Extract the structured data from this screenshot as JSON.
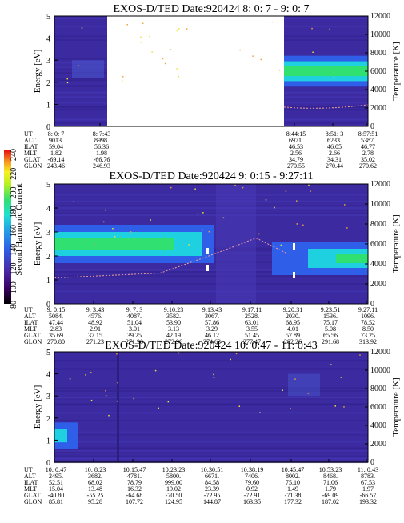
{
  "colorbar": {
    "label": "Second Harmonic Current",
    "ticks": [
      "240",
      "220",
      "200",
      "180",
      "160",
      "140",
      "120",
      "100",
      "80"
    ]
  },
  "chart_data": [
    {
      "type": "heatmap",
      "title": "EXOS-D/TED   Date:920424   8: 0: 7 - 9: 0: 7",
      "ylabel": "Energy [eV]",
      "y2label": "Temperature [K]",
      "ylim": [
        0,
        5
      ],
      "y2lim": [
        0,
        12000
      ],
      "yticks": [
        "0",
        "1",
        "2",
        "3",
        "4",
        "5"
      ],
      "y2ticks": [
        "0",
        "2000",
        "4000",
        "6000",
        "8000",
        "10000",
        "12000"
      ],
      "data_gap": {
        "from": "8: 7:43",
        "to": "8:44:15"
      },
      "ion_band_peak_ev": 2.5,
      "temperature_trace_k": 2100,
      "ephemeris": {
        "labels": [
          "UT",
          "ALT",
          "ILAT",
          "MLT",
          "GLAT",
          "GLON"
        ],
        "columns": [
          {
            "UT": "8: 0: 7",
            "ALT": "9013.",
            "ILAT": "59.04",
            "MLT": "1.82",
            "GLAT": "-69.14",
            "GLON": "243.46"
          },
          {
            "UT": "8: 7:43",
            "ALT": "8998.",
            "ILAT": "56.36",
            "MLT": "1.98",
            "GLAT": "-66.76",
            "GLON": "246.93"
          },
          {
            "UT": "8:44:15",
            "ALT": "6971.",
            "ILAT": "46.53",
            "MLT": "2.56",
            "GLAT": "34.79",
            "GLON": "270.55"
          },
          {
            "UT": "8:51: 3",
            "ALT": "6233.",
            "ILAT": "46.05",
            "MLT": "2.66",
            "GLAT": "34.31",
            "GLON": "270.44"
          },
          {
            "UT": "8:57:51",
            "ALT": "5387.",
            "ILAT": "46.77",
            "MLT": "2.78",
            "GLAT": "35.02",
            "GLON": "270.62"
          }
        ]
      }
    },
    {
      "type": "heatmap",
      "title": "EXOS-D/TED   Date:920424   9: 0:15 - 9:27:11",
      "ylabel": "Energy [eV]",
      "y2label": "Temperature [K]",
      "ylim": [
        0,
        5
      ],
      "y2lim": [
        0,
        12000
      ],
      "yticks": [
        "0",
        "1",
        "2",
        "3",
        "4",
        "5"
      ],
      "y2ticks": [
        "0",
        "2000",
        "4000",
        "6000",
        "8000",
        "10000",
        "12000"
      ],
      "ion_band_peak_ev": 2.5,
      "temperature_trace_k": 2600,
      "ephemeris": {
        "labels": [
          "UT",
          "ALT",
          "ILAT",
          "MLT",
          "GLAT",
          "GLON"
        ],
        "columns": [
          {
            "UT": "9: 0:15",
            "ALT": "5084.",
            "ILAT": "47.44",
            "MLT": "2.83",
            "GLAT": "35.69",
            "GLON": "270.80"
          },
          {
            "UT": "9: 3:43",
            "ALT": "4576.",
            "ILAT": "48.92",
            "MLT": "2.91",
            "GLAT": "37.15",
            "GLON": "271.23"
          },
          {
            "UT": "9: 7: 3",
            "ALT": "4087.",
            "ILAT": "51.04",
            "MLT": "3.01",
            "GLAT": "39.25",
            "GLON": "271.90"
          },
          {
            "UT": "9:10:23",
            "ALT": "3582.",
            "ILAT": "53.90",
            "MLT": "3.13",
            "GLAT": "42.19",
            "GLON": "272.96"
          },
          {
            "UT": "9:13:43",
            "ALT": "3067.",
            "ILAT": "57.86",
            "MLT": "3.29",
            "GLAT": "46.12",
            "GLON": "274.63"
          },
          {
            "UT": "9:17:11",
            "ALT": "2528.",
            "ILAT": "63.01",
            "MLT": "3.55",
            "GLAT": "51.45",
            "GLON": "277.47"
          },
          {
            "UT": "9:20:31",
            "ALT": "2030.",
            "ILAT": "68.95",
            "MLT": "4.01",
            "GLAT": "57.89",
            "GLON": "282.26"
          },
          {
            "UT": "9:23:51",
            "ALT": "1536.",
            "ILAT": "75.17",
            "MLT": "5.08",
            "GLAT": "65.56",
            "GLON": "291.68"
          },
          {
            "UT": "9:27:11",
            "ALT": "1096.",
            "ILAT": "78.52",
            "MLT": "8.50",
            "GLAT": "73.25",
            "GLON": "313.92"
          }
        ]
      }
    },
    {
      "type": "heatmap",
      "title": "EXOS-D/TED   Date:920424   10: 0:47 - 11: 0:43",
      "ylabel": "Energy [eV]",
      "y2label": "Temperature [K]",
      "ylim": [
        0,
        5
      ],
      "y2lim": [
        0,
        12000
      ],
      "yticks": [
        "0",
        "1",
        "2",
        "3",
        "4",
        "5"
      ],
      "y2ticks": [
        "0",
        "2000",
        "4000",
        "6000",
        "8000",
        "10000",
        "12000"
      ],
      "ion_band_peak_ev": 1.2,
      "ephemeris": {
        "labels": [
          "UT",
          "ALT",
          "ILAT",
          "MLT",
          "GLAT",
          "GLON"
        ],
        "columns": [
          {
            "UT": "10: 0:47",
            "ALT": "2495.",
            "ILAT": "52.51",
            "MLT": "15.04",
            "GLAT": "-40.80",
            "GLON": "85.81"
          },
          {
            "UT": "10: 8:23",
            "ALT": "3682.",
            "ILAT": "68.02",
            "MLT": "13.48",
            "GLAT": "-55.25",
            "GLON": "95.28"
          },
          {
            "UT": "10:15:47",
            "ALT": "4781.",
            "ILAT": "78.79",
            "MLT": "16.32",
            "GLAT": "-64.68",
            "GLON": "107.72"
          },
          {
            "UT": "10:23:23",
            "ALT": "5800.",
            "ILAT": "999.00",
            "MLT": "19.02",
            "GLAT": "-70.50",
            "GLON": "124.95"
          },
          {
            "UT": "10:30:51",
            "ALT": "6671.",
            "ILAT": "84.58",
            "MLT": "23.39",
            "GLAT": "-72.95",
            "GLON": "144.87"
          },
          {
            "UT": "10:38:19",
            "ALT": "7406.",
            "ILAT": "79.60",
            "MLT": "0.92",
            "GLAT": "-72.91",
            "GLON": "163.35"
          },
          {
            "UT": "10:45:47",
            "ALT": "8002.",
            "ILAT": "75.10",
            "MLT": "1.49",
            "GLAT": "-71.38",
            "GLON": "177.32"
          },
          {
            "UT": "10:53:23",
            "ALT": "8468.",
            "ILAT": "71.06",
            "MLT": "1.79",
            "GLAT": "-69.09",
            "GLON": "187.02"
          },
          {
            "UT": "11: 0:43",
            "ALT": "8783.",
            "ILAT": "67.53",
            "MLT": "1.97",
            "GLAT": "-66.57",
            "GLON": "193.32"
          }
        ]
      }
    }
  ]
}
